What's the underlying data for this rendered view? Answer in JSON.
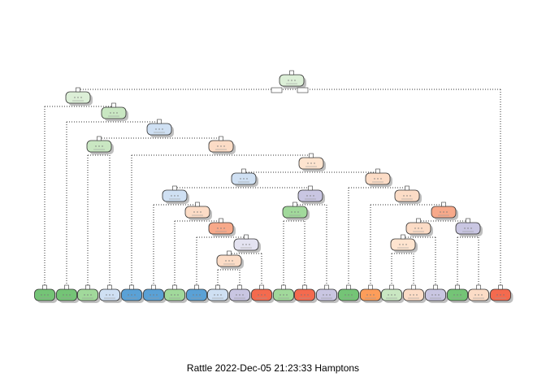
{
  "caption": "Rattle 2022-Dec-05 21:23:33 Hamptons",
  "colors": {
    "light_green": "#dcefd7",
    "pale_green": "#c9e7c2",
    "green": "#74c476",
    "mid_green": "#a1d99b",
    "light_blue": "#cfe0f3",
    "blue": "#5aa1d6",
    "peach": "#fcdcc6",
    "salmon": "#f7a98a",
    "red": "#f46a4e",
    "orange": "#fd9d5a",
    "lavender": "#c9c6e2",
    "light_lavender": "#e4e3f1",
    "light_peach": "#fee4cf"
  },
  "tree": {
    "internal_nodes": [
      {
        "id": "root",
        "color": "light_green"
      },
      {
        "id": "n1",
        "color": "light_green"
      },
      {
        "id": "n2",
        "color": "pale_green"
      },
      {
        "id": "n3",
        "color": "light_blue"
      },
      {
        "id": "n4",
        "color": "pale_green"
      },
      {
        "id": "n5",
        "color": "peach"
      },
      {
        "id": "n6",
        "color": "light_peach"
      },
      {
        "id": "n7",
        "color": "light_blue"
      },
      {
        "id": "n8",
        "color": "peach"
      },
      {
        "id": "n9",
        "color": "light_blue"
      },
      {
        "id": "n10",
        "color": "lavender"
      },
      {
        "id": "n11",
        "color": "peach"
      },
      {
        "id": "n12",
        "color": "mid_green"
      },
      {
        "id": "n13",
        "color": "peach"
      },
      {
        "id": "n14",
        "color": "salmon"
      },
      {
        "id": "n15",
        "color": "peach"
      },
      {
        "id": "n16",
        "color": "lavender"
      },
      {
        "id": "n17",
        "color": "salmon"
      },
      {
        "id": "n18",
        "color": "light_peach"
      },
      {
        "id": "n19",
        "color": "light_lavender"
      },
      {
        "id": "n20",
        "color": "peach"
      }
    ],
    "leaves": [
      {
        "color": "green"
      },
      {
        "color": "green"
      },
      {
        "color": "mid_green"
      },
      {
        "color": "light_blue"
      },
      {
        "color": "blue"
      },
      {
        "color": "blue"
      },
      {
        "color": "mid_green"
      },
      {
        "color": "blue"
      },
      {
        "color": "light_blue"
      },
      {
        "color": "lavender"
      },
      {
        "color": "red"
      },
      {
        "color": "mid_green"
      },
      {
        "color": "red"
      },
      {
        "color": "lavender"
      },
      {
        "color": "green"
      },
      {
        "color": "orange"
      },
      {
        "color": "pale_green"
      },
      {
        "color": "peach"
      },
      {
        "color": "lavender"
      },
      {
        "color": "green"
      },
      {
        "color": "peach"
      },
      {
        "color": "red"
      }
    ]
  }
}
